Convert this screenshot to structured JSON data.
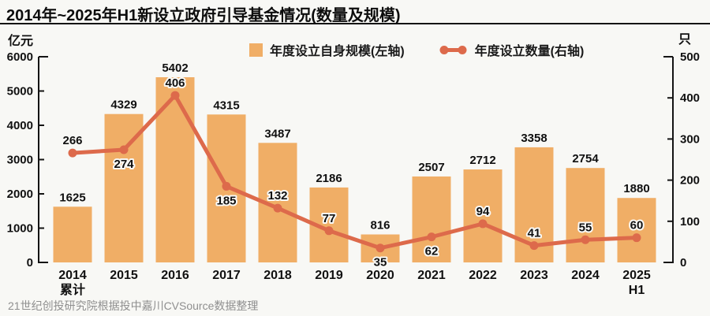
{
  "title": "2014年~2025年H1新设立政府引导基金情况(数量及规模)",
  "source": "21世纪创投研究院根据投中嘉川CVSource数据整理",
  "chart_data": {
    "type": "bar",
    "subtype": "bar+line dual axis",
    "title": "2014年~2025年H1新设立政府引导基金情况(数量及规模)",
    "categories": [
      "2014\n累计",
      "2015",
      "2016",
      "2017",
      "2018",
      "2019",
      "2020",
      "2021",
      "2022",
      "2023",
      "2024",
      "2025\nH1"
    ],
    "series": [
      {
        "name": "年度设立自身规模(左轴)",
        "type": "bar",
        "axis": "left",
        "values": [
          1625,
          4329,
          5402,
          4315,
          3487,
          2186,
          816,
          2507,
          2712,
          3358,
          2754,
          1880
        ]
      },
      {
        "name": "年度设立数量(右轴)",
        "type": "line",
        "axis": "right",
        "values": [
          266,
          274,
          406,
          185,
          132,
          77,
          35,
          62,
          94,
          41,
          55,
          60
        ],
        "label_pos": [
          "above",
          "below",
          "above",
          "below",
          "above",
          "above",
          "below",
          "below",
          "above",
          "above",
          "above",
          "above"
        ]
      }
    ],
    "ylabel_left": "亿元",
    "ylabel_right": "只",
    "ylim_left": [
      0,
      6000
    ],
    "ylim_right": [
      0,
      500
    ],
    "yticks_left": [
      0,
      1000,
      2000,
      3000,
      4000,
      5000,
      6000
    ],
    "yticks_right": [
      0,
      100,
      200,
      300,
      400,
      500
    ],
    "grid": false,
    "legend_position": "top",
    "colors": {
      "bar": "#F0AE66",
      "line": "#DD6A4B"
    }
  }
}
